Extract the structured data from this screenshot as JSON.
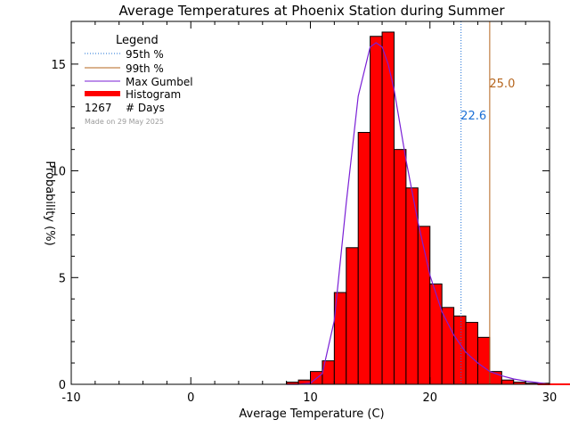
{
  "chart_data": {
    "type": "bar",
    "title": "Average Temperatures at Phoenix Station during Summer",
    "xlabel": "Average Temperature (C)",
    "ylabel": "Probability  (%)",
    "xlim": [
      -10,
      30
    ],
    "ylim": [
      0,
      17
    ],
    "xticks": [
      -10,
      0,
      10,
      20,
      30
    ],
    "yticks": [
      0,
      5,
      10,
      15
    ],
    "legend": {
      "title": "Legend",
      "entries": [
        {
          "label": "95th %",
          "style": "dotted",
          "color": "#1a6fd6"
        },
        {
          "label": "99th %",
          "style": "solid",
          "color": "#b5651d"
        },
        {
          "label": "Max Gumbel",
          "style": "solid",
          "color": "#7a1fd6"
        },
        {
          "label": "Histogram",
          "style": "thick",
          "color": "#ff0000"
        }
      ],
      "days_count": "1267",
      "days_label": "# Days",
      "footnote": "Made on 29 May 2025"
    },
    "histogram": {
      "bin_width": 1,
      "bin_starts": [
        8,
        9,
        10,
        11,
        12,
        13,
        14,
        15,
        16,
        17,
        18,
        19,
        20,
        21,
        22,
        23,
        24,
        25,
        26,
        27,
        28,
        29
      ],
      "values": [
        0.1,
        0.2,
        0.6,
        1.1,
        4.3,
        6.4,
        11.8,
        16.3,
        16.5,
        11.0,
        9.2,
        7.4,
        4.7,
        3.6,
        3.2,
        2.9,
        2.2,
        0.6,
        0.2,
        0.1,
        0.05,
        0.05
      ],
      "color": "#ff0000"
    },
    "percentiles": [
      {
        "name": "95th %",
        "value": 22.6,
        "label": "22.6",
        "color": "#1a6fd6",
        "style": "dotted"
      },
      {
        "name": "99th %",
        "value": 25.0,
        "label": "25.0",
        "color": "#b5651d",
        "style": "solid"
      }
    ],
    "gumbel": {
      "color": "#7a1fd6",
      "x": [
        8,
        9,
        10,
        11,
        12,
        13,
        14,
        15,
        15.5,
        16,
        16.5,
        17,
        18,
        19,
        20,
        21,
        22,
        23,
        24,
        25,
        26,
        27,
        28,
        29,
        30
      ],
      "y": [
        0,
        0,
        0.05,
        0.5,
        3.0,
        8.5,
        13.5,
        15.8,
        16.0,
        15.8,
        15.0,
        13.8,
        10.5,
        7.6,
        5.1,
        3.4,
        2.3,
        1.5,
        1.0,
        0.6,
        0.4,
        0.25,
        0.15,
        0.08,
        0
      ]
    }
  }
}
